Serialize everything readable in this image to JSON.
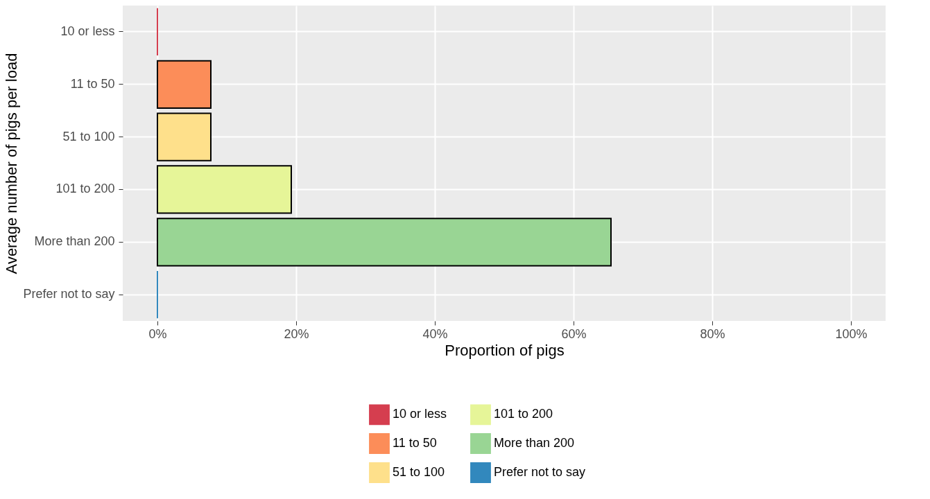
{
  "chart_data": {
    "type": "bar",
    "orientation": "horizontal",
    "xlabel": "Proportion of pigs",
    "ylabel": "Average number of pigs per load",
    "categories": [
      "10 or less",
      "11 to 50",
      "51 to 100",
      "101 to 200",
      "More than 200",
      "Prefer not to say"
    ],
    "series": [
      {
        "name": "10 or less",
        "color": "#d53e4f",
        "values": [
          0,
          null,
          null,
          null,
          null,
          null
        ]
      },
      {
        "name": "11 to 50",
        "color": "#fc8d59",
        "values": [
          null,
          7.7,
          null,
          null,
          null,
          null
        ]
      },
      {
        "name": "51 to 100",
        "color": "#fee08b",
        "values": [
          null,
          null,
          7.7,
          null,
          null,
          null
        ]
      },
      {
        "name": "101 to 200",
        "color": "#e6f598",
        "values": [
          null,
          null,
          null,
          19.3,
          null,
          null
        ]
      },
      {
        "name": "More than 200",
        "color": "#99d594",
        "values": [
          null,
          null,
          null,
          null,
          65.4,
          null
        ]
      },
      {
        "name": "Prefer not to say",
        "color": "#3288bd",
        "values": [
          null,
          null,
          null,
          null,
          null,
          0
        ]
      }
    ],
    "xlim": [
      -5,
      105
    ],
    "xticks": [
      {
        "value": 0,
        "label": "0%"
      },
      {
        "value": 20,
        "label": "20%"
      },
      {
        "value": 40,
        "label": "40%"
      },
      {
        "value": 60,
        "label": "60%"
      },
      {
        "value": 80,
        "label": "80%"
      },
      {
        "value": 100,
        "label": "100%"
      }
    ],
    "grid": true,
    "legend": "bottom"
  }
}
